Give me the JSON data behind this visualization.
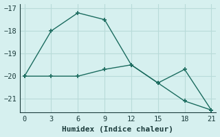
{
  "x": [
    0,
    3,
    6,
    9,
    12,
    15,
    18,
    21
  ],
  "line1_y": [
    -20.0,
    -18.0,
    -17.2,
    -17.5,
    -19.5,
    -20.3,
    -19.7,
    -21.5
  ],
  "line2_y": [
    -20.0,
    -20.0,
    -20.0,
    -19.7,
    -19.5,
    -20.3,
    -21.1,
    -21.5
  ],
  "line_color": "#1a6b5e",
  "bg_color": "#d6f0ef",
  "grid_color": "#b8dbd9",
  "xlabel": "Humidex (Indice chaleur)",
  "xlim": [
    -0.5,
    21.5
  ],
  "ylim": [
    -21.6,
    -16.8
  ],
  "xticks": [
    0,
    3,
    6,
    9,
    12,
    15,
    18,
    21
  ],
  "yticks": [
    -21,
    -20,
    -19,
    -18,
    -17
  ],
  "marker": "+",
  "markersize": 5,
  "linewidth": 1.0,
  "font_color": "#1a3a3a",
  "xlabel_fontsize": 8,
  "tick_fontsize": 7.5
}
